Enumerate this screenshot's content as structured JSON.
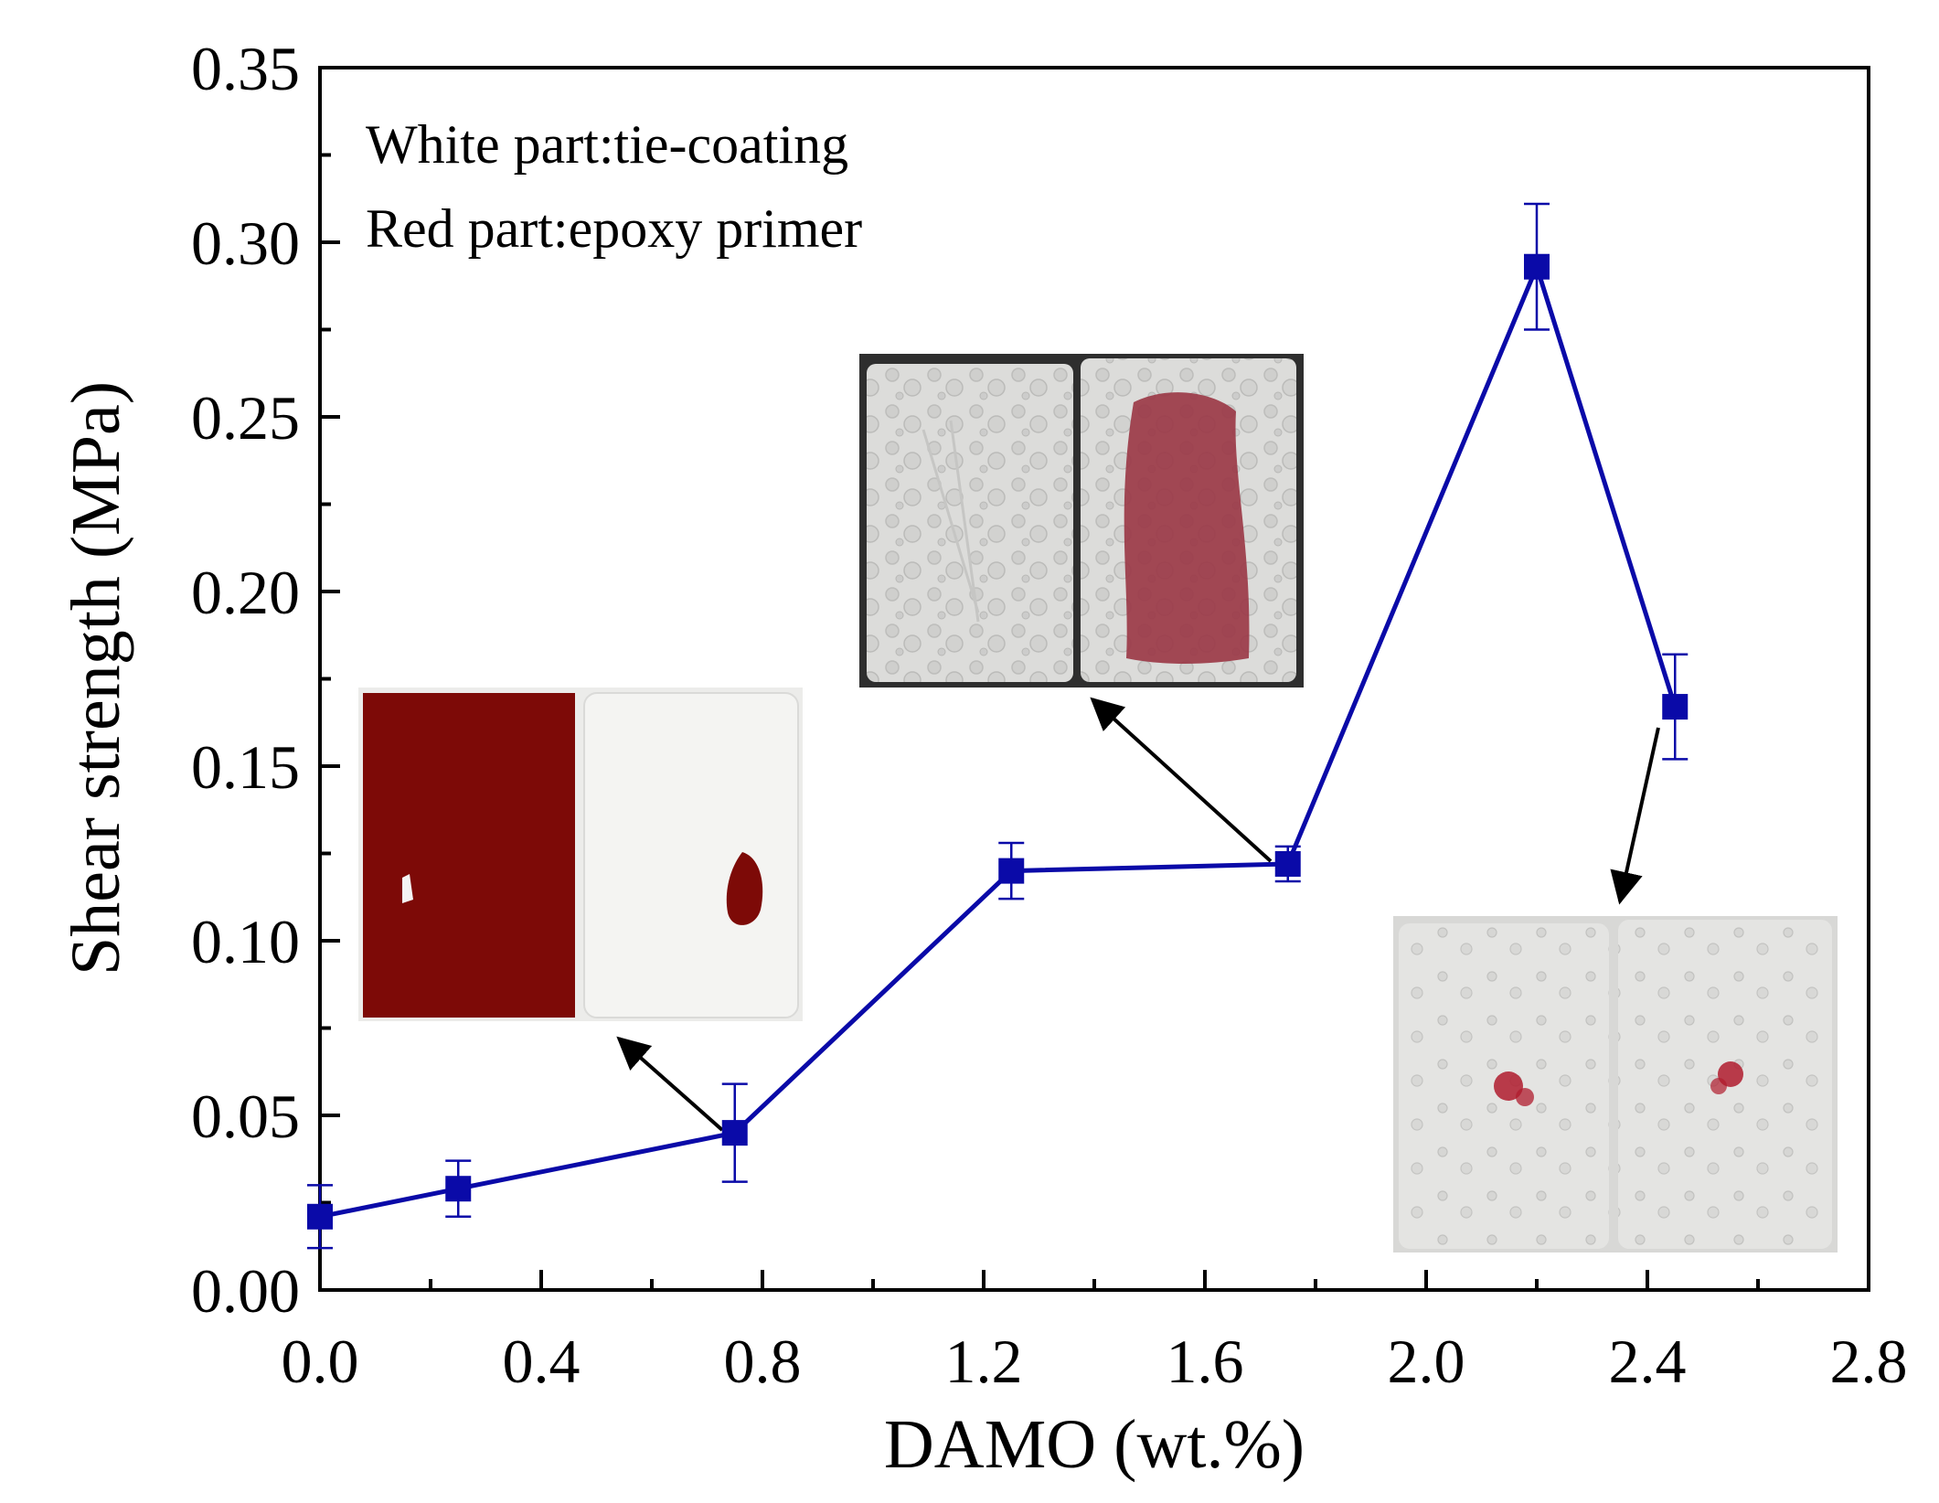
{
  "chart_data": {
    "type": "line",
    "title": "",
    "xlabel": "DAMO (wt.%)",
    "ylabel": "Shear strength (MPa)",
    "xlim": [
      0.0,
      2.8
    ],
    "ylim": [
      0.0,
      0.35
    ],
    "x_ticks": [
      "0.0",
      "0.4",
      "0.8",
      "1.2",
      "1.6",
      "2.0",
      "2.4",
      "2.8"
    ],
    "y_ticks": [
      "0.00",
      "0.05",
      "0.10",
      "0.15",
      "0.20",
      "0.25",
      "0.30",
      "0.35"
    ],
    "grid": false,
    "series": [
      {
        "name": "Shear strength",
        "color": "#0a0aa8",
        "marker": "square",
        "x": [
          0.0,
          0.25,
          0.75,
          1.25,
          1.75,
          2.2,
          2.45
        ],
        "y": [
          0.021,
          0.029,
          0.045,
          0.12,
          0.122,
          0.293,
          0.167
        ],
        "error": [
          0.009,
          0.008,
          0.014,
          0.008,
          0.005,
          0.018,
          0.015
        ]
      }
    ],
    "annotations": [
      "White part:tie-coating",
      "Red part:epoxy primer"
    ],
    "insets": [
      {
        "name": "photo-0.75wt",
        "points_to_x": 0.75,
        "description_colors": [
          "#7d0a07",
          "#f4f4f2"
        ]
      },
      {
        "name": "photo-1.75wt",
        "points_to_x": 1.75,
        "description_colors": [
          "#d9d9d7",
          "#9b3a48"
        ]
      },
      {
        "name": "photo-2.45wt",
        "points_to_x": 2.45,
        "description_colors": [
          "#e3e3e1",
          "#b01c2e"
        ]
      }
    ]
  }
}
